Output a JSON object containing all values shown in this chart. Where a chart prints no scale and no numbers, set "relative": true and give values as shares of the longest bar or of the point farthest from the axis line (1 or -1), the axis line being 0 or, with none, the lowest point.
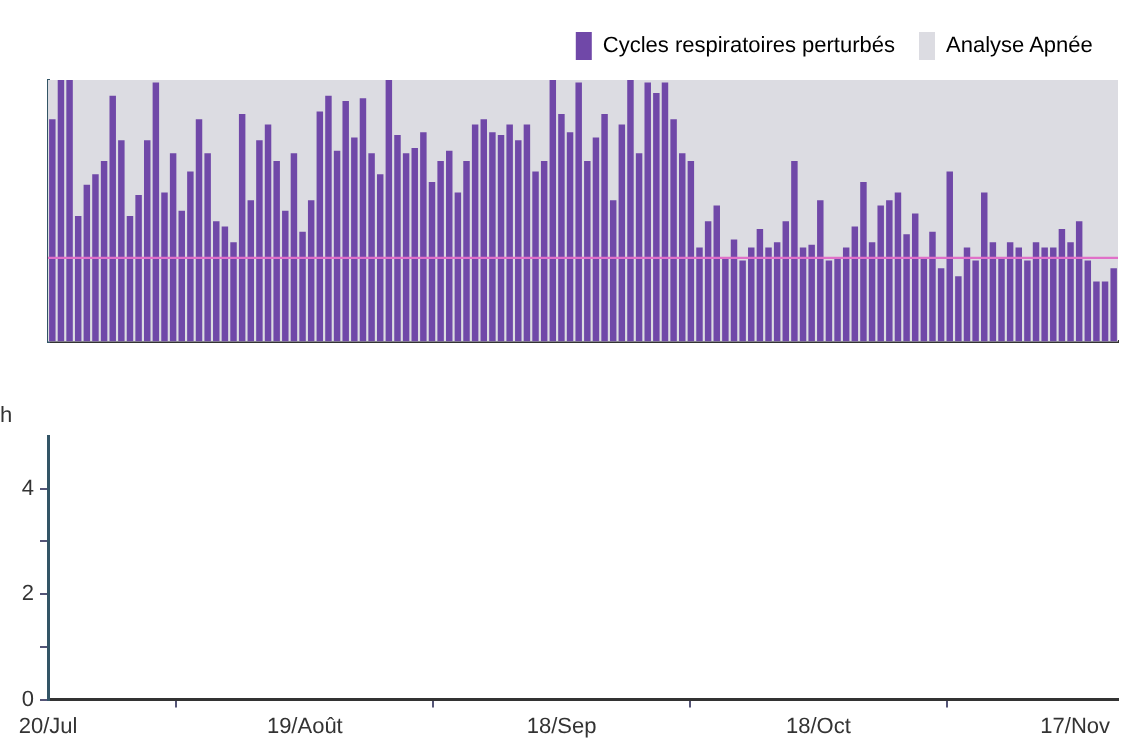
{
  "chart_data": [
    {
      "type": "bar",
      "relative": true,
      "legend": "top right",
      "categories": [
        null,
        null,
        null,
        null,
        null,
        null,
        null,
        null,
        null,
        null,
        null,
        null,
        null,
        null,
        null,
        null,
        null,
        null,
        null,
        null,
        null,
        null,
        null,
        null,
        null,
        null,
        null,
        null,
        null,
        null,
        null,
        null,
        null,
        null,
        null,
        null,
        null,
        null,
        null,
        null,
        null,
        null,
        null,
        null,
        null,
        null,
        null,
        null,
        null,
        null,
        null,
        null,
        null,
        null,
        null,
        null,
        null,
        null,
        null,
        null,
        null,
        null,
        null,
        null,
        null,
        null,
        null,
        null,
        null,
        null,
        null,
        null,
        null,
        null,
        null,
        null,
        null,
        null,
        null,
        null,
        null,
        null,
        null,
        null,
        null,
        null,
        null,
        null,
        null,
        null,
        null,
        null,
        null,
        null,
        null,
        null,
        null,
        null,
        null,
        null,
        null,
        null,
        null,
        null,
        null,
        null,
        null,
        null,
        null,
        null,
        null,
        null,
        null,
        null,
        null,
        null,
        null,
        null,
        null,
        null,
        null,
        null,
        null,
        null
      ],
      "series": [
        {
          "name": "Cycles respiratoires perturbés",
          "color": "#7048a8",
          "values": [
            0.85,
            1,
            1,
            0.48,
            0.6,
            0.64,
            0.69,
            0.94,
            0.77,
            0.48,
            0.56,
            0.77,
            0.99,
            0.57,
            0.72,
            0.5,
            0.65,
            0.85,
            0.72,
            0.46,
            0.44,
            0.38,
            0.87,
            0.54,
            0.77,
            0.83,
            0.69,
            0.5,
            0.72,
            0.42,
            0.54,
            0.88,
            0.94,
            0.73,
            0.92,
            0.78,
            0.93,
            0.72,
            0.64,
            1,
            0.79,
            0.72,
            0.74,
            0.8,
            0.61,
            0.69,
            0.73,
            0.57,
            0.69,
            0.83,
            0.85,
            0.8,
            0.79,
            0.83,
            0.77,
            0.83,
            0.65,
            0.69,
            1,
            0.87,
            0.8,
            0.99,
            0.69,
            0.78,
            0.87,
            0.54,
            0.83,
            1,
            0.72,
            0.99,
            0.95,
            0.99,
            0.85,
            0.72,
            0.69,
            0.36,
            0.46,
            0.52,
            0.32,
            0.39,
            0.31,
            0.36,
            0.43,
            0.36,
            0.38,
            0.46,
            0.69,
            0.36,
            0.37,
            0.54,
            0.31,
            0.32,
            0.36,
            0.44,
            0.61,
            0.38,
            0.52,
            0.54,
            0.57,
            0.41,
            0.49,
            0.32,
            0.42,
            0.28,
            0.65,
            0.25,
            0.36,
            0.31,
            0.57,
            0.38,
            0.32,
            0.38,
            0.36,
            0.31,
            0.38,
            0.36,
            0.36,
            0.43,
            0.38,
            0.46,
            0.31,
            0.23,
            0.23,
            0.28
          ]
        }
      ],
      "bands": [
        {
          "axis": "y",
          "from": 0,
          "to": 1,
          "label": "Analyse Apnée",
          "color": "#dcdce2"
        }
      ],
      "ref_lines": [
        {
          "axis": "y",
          "value": 0.32,
          "color": "#e070c8"
        }
      ]
    },
    {
      "type": "bar",
      "ylabel": "h",
      "ylim": [
        0,
        5
      ],
      "yticks": [
        0,
        {
          "value": 1,
          "label": null
        },
        2,
        {
          "value": 3,
          "label": null
        },
        4
      ],
      "xlim": [
        "--07-20",
        "--11-22"
      ],
      "xticks": [
        {
          "value": "--07-20",
          "label": "20/Jul"
        },
        {
          "value": "--08-19",
          "label": "19/Août"
        },
        {
          "value": "--09-18",
          "label": "18/Sep"
        },
        {
          "value": "--10-18",
          "label": "18/Oct"
        },
        {
          "value": "--11-17",
          "label": "17/Nov"
        }
      ],
      "grid": false
    }
  ]
}
